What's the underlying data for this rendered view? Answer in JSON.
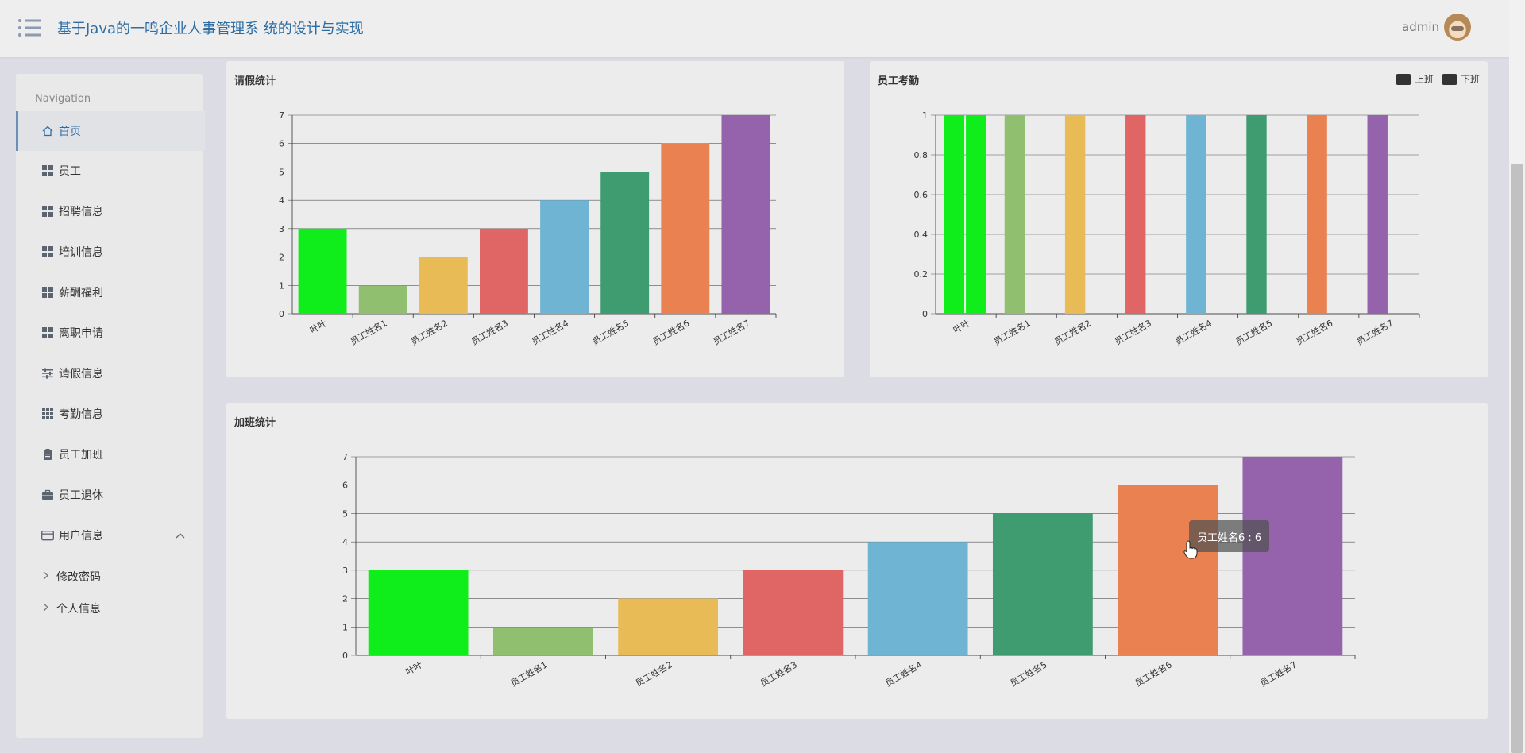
{
  "header": {
    "app_title": "基于Java的一鸣企业人事管理系 统的设计与实现",
    "user_name": "admin"
  },
  "sidebar": {
    "title": "Navigation",
    "items": [
      {
        "label": "首页",
        "icon": "home-icon",
        "active": true
      },
      {
        "label": "员工",
        "icon": "grid-icon"
      },
      {
        "label": "招聘信息",
        "icon": "grid-icon"
      },
      {
        "label": "培训信息",
        "icon": "grid-icon"
      },
      {
        "label": "薪酬福利",
        "icon": "grid-icon"
      },
      {
        "label": "离职申请",
        "icon": "grid-icon"
      },
      {
        "label": "请假信息",
        "icon": "sliders-icon"
      },
      {
        "label": "考勤信息",
        "icon": "grid3-icon"
      },
      {
        "label": "员工加班",
        "icon": "clipboard-icon"
      },
      {
        "label": "员工退休",
        "icon": "briefcase-icon"
      },
      {
        "label": "用户信息",
        "icon": "wallet-icon",
        "expanded": true
      }
    ],
    "sub_items": [
      {
        "label": "修改密码"
      },
      {
        "label": "个人信息"
      }
    ]
  },
  "colors": {
    "palette": [
      "#0fee1a",
      "#8fbf6f",
      "#e8bb56",
      "#e06666",
      "#6fb4d2",
      "#3f9b70",
      "#ea8150",
      "#9562ac"
    ],
    "accent": "#2d6da3"
  },
  "tooltip": {
    "text": "员工姓名6 : 6"
  },
  "chart_data": [
    {
      "id": "leave",
      "type": "bar",
      "title": "请假统计",
      "categories": [
        "叶叶",
        "员工姓名1",
        "员工姓名2",
        "员工姓名3",
        "员工姓名4",
        "员工姓名5",
        "员工姓名6",
        "员工姓名7"
      ],
      "values": [
        3,
        1,
        2,
        3,
        4,
        5,
        6,
        7
      ],
      "ylim": [
        0,
        7
      ],
      "yticks": [
        0,
        1,
        2,
        3,
        4,
        5,
        6,
        7
      ],
      "grid": true
    },
    {
      "id": "attendance",
      "type": "bar",
      "title": "员工考勤",
      "legend": [
        "上班",
        "下班"
      ],
      "legend_position": "top-right",
      "categories": [
        "叶叶",
        "员工姓名1",
        "员工姓名2",
        "员工姓名3",
        "员工姓名4",
        "员工姓名5",
        "员工姓名6",
        "员工姓名7"
      ],
      "series": [
        {
          "name": "上班",
          "values": [
            1,
            1,
            1,
            1,
            1,
            1,
            1,
            1
          ]
        },
        {
          "name": "下班",
          "values": [
            1,
            0,
            0,
            0,
            0,
            0,
            0,
            0
          ]
        }
      ],
      "ylim": [
        0,
        1
      ],
      "yticks": [
        "0",
        "0.2",
        "0.4",
        "0.6",
        "0.8",
        "1"
      ],
      "grid": true
    },
    {
      "id": "overtime",
      "type": "bar",
      "title": "加班统计",
      "categories": [
        "叶叶",
        "员工姓名1",
        "员工姓名2",
        "员工姓名3",
        "员工姓名4",
        "员工姓名5",
        "员工姓名6",
        "员工姓名7"
      ],
      "values": [
        3,
        1,
        2,
        3,
        4,
        5,
        6,
        7
      ],
      "ylim": [
        0,
        7
      ],
      "yticks": [
        0,
        1,
        2,
        3,
        4,
        5,
        6,
        7
      ],
      "grid": true
    }
  ]
}
